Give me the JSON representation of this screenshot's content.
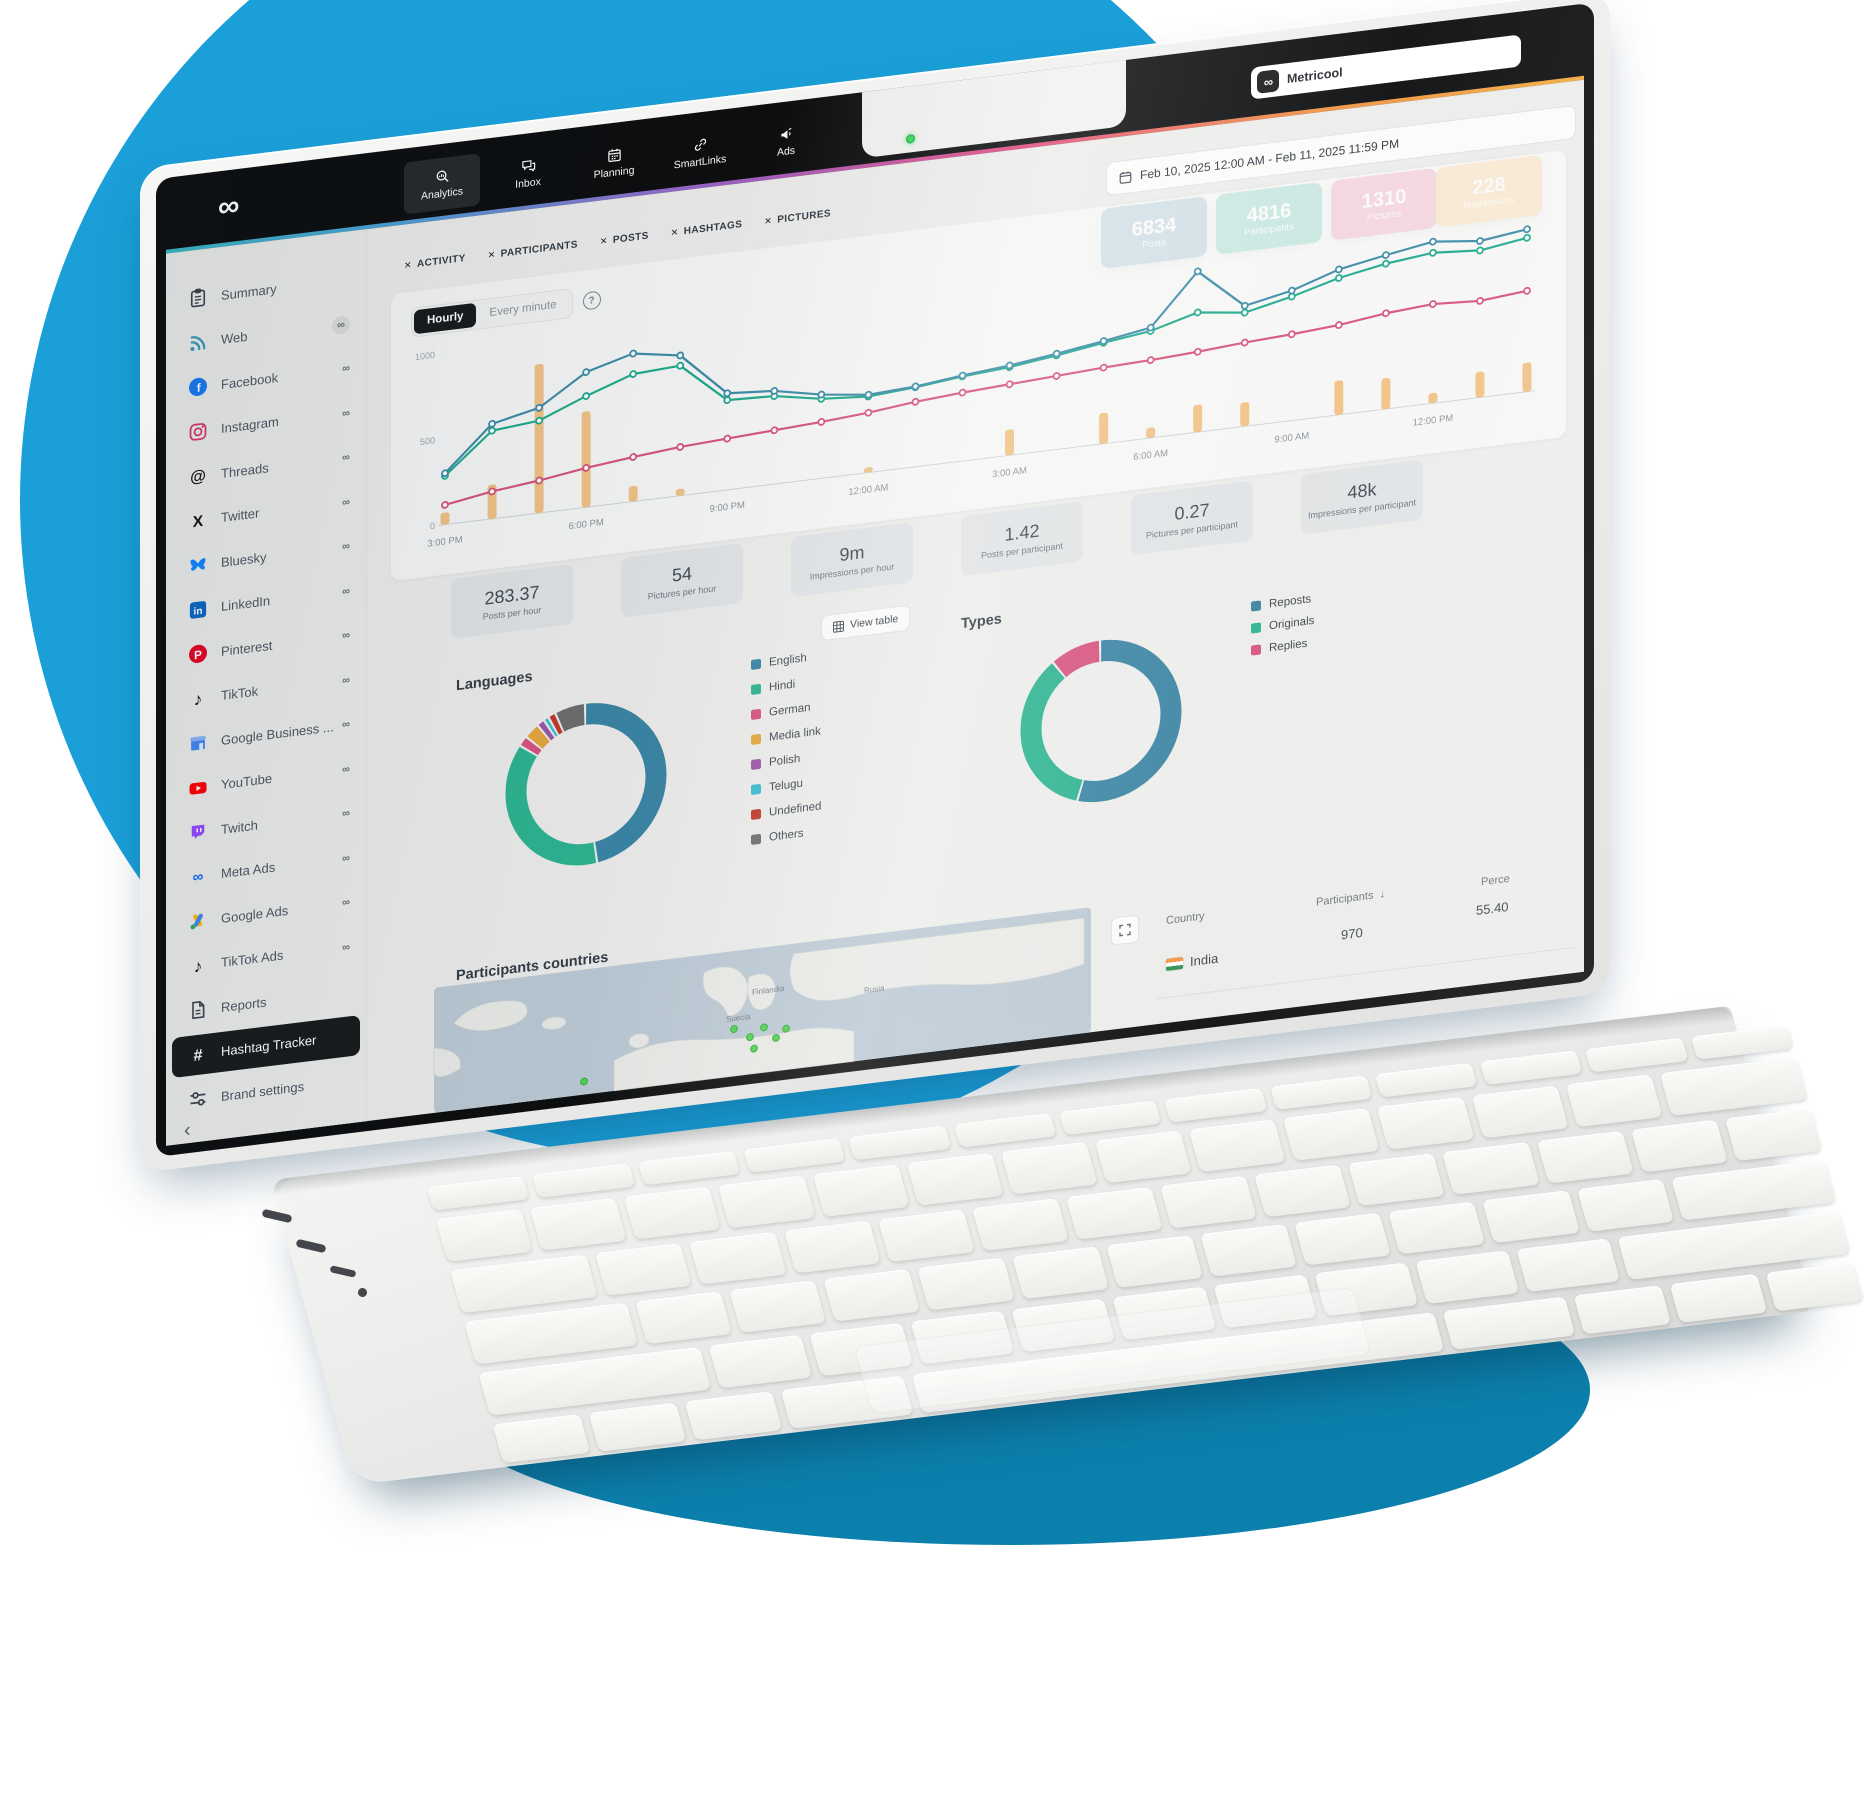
{
  "scene": {
    "background_color": "#1b9fd8",
    "background_dark_color": "#0c80ad"
  },
  "navbar": {
    "logo_glyph": "∞",
    "items": [
      {
        "label": "Analytics",
        "icon": "analytics-icon",
        "active": true
      },
      {
        "label": "Inbox",
        "icon": "inbox-icon",
        "active": false
      },
      {
        "label": "Planning",
        "icon": "planning-icon",
        "active": false
      },
      {
        "label": "SmartLinks",
        "icon": "smartlinks-icon",
        "active": false
      },
      {
        "label": "Ads",
        "icon": "ads-icon",
        "active": false
      }
    ],
    "account_badge": {
      "label": "Metricool",
      "glyph": "∞"
    }
  },
  "sidebar": {
    "items": [
      {
        "label": "Summary",
        "icon": "summary-icon",
        "badge": ""
      },
      {
        "label": "Web",
        "icon": "web-icon",
        "badge": "∞",
        "badge_circle": true
      },
      {
        "label": "Facebook",
        "icon": "facebook-icon",
        "badge": "∞"
      },
      {
        "label": "Instagram",
        "icon": "instagram-icon",
        "badge": "∞"
      },
      {
        "label": "Threads",
        "icon": "threads-icon",
        "badge": "∞"
      },
      {
        "label": "Twitter",
        "icon": "twitter-icon",
        "badge": "∞"
      },
      {
        "label": "Bluesky",
        "icon": "bluesky-icon",
        "badge": "∞"
      },
      {
        "label": "LinkedIn",
        "icon": "linkedin-icon",
        "badge": "∞"
      },
      {
        "label": "Pinterest",
        "icon": "pinterest-icon",
        "badge": "∞"
      },
      {
        "label": "TikTok",
        "icon": "tiktok-icon",
        "badge": "∞"
      },
      {
        "label": "Google Business ...",
        "icon": "google-business-icon",
        "badge": "∞"
      },
      {
        "label": "YouTube",
        "icon": "youtube-icon",
        "badge": "∞"
      },
      {
        "label": "Twitch",
        "icon": "twitch-icon",
        "badge": "∞"
      },
      {
        "label": "Meta Ads",
        "icon": "meta-ads-icon",
        "badge": "∞"
      },
      {
        "label": "Google Ads",
        "icon": "google-ads-icon",
        "badge": "∞"
      },
      {
        "label": "TikTok Ads",
        "icon": "tiktok-ads-icon",
        "badge": "∞"
      },
      {
        "label": "Reports",
        "icon": "reports-icon",
        "badge": ""
      },
      {
        "label": "Hashtag Tracker",
        "icon": "hashtag-icon",
        "badge": "",
        "active": true
      },
      {
        "label": "Brand settings",
        "icon": "settings-icon",
        "badge": ""
      }
    ],
    "collapse_glyph": "‹"
  },
  "filters": {
    "chips": [
      {
        "label": "ACTIVITY"
      },
      {
        "label": "PARTICIPANTS"
      },
      {
        "label": "POSTS"
      },
      {
        "label": "HASHTAGS"
      },
      {
        "label": "PICTURES"
      }
    ],
    "remove_glyph": "✕"
  },
  "toolbar": {
    "date_range": "Feb 10, 2025 12:00 AM  -  Feb 11, 2025 11:59 PM"
  },
  "kpis": [
    {
      "value": "6834",
      "label": "Posts",
      "color": "#3b7fa0"
    },
    {
      "value": "4816",
      "label": "Participants",
      "color": "#13a086"
    },
    {
      "value": "1310",
      "label": "Pictures",
      "color": "#de4a7d"
    },
    {
      "value": "228",
      "label": "Impressions",
      "color": "#efa63e"
    }
  ],
  "activity": {
    "toggle": [
      {
        "label": "Hourly",
        "active": true
      },
      {
        "label": "Every minute",
        "active": false
      }
    ],
    "help_glyph": "?",
    "chart_data": {
      "type": "line",
      "tick_labels": [
        "3:00 PM",
        "6:00 PM",
        "9:00 PM",
        "12:00 AM",
        "3:00 AM",
        "6:00 AM",
        "9:00 AM",
        "12:00 PM"
      ],
      "tick_every": 3,
      "ylim": [
        0,
        1000
      ],
      "yticks": [
        0,
        500,
        1000
      ],
      "series": [
        {
          "name": "teal-line",
          "color": "#3c8ba8",
          "values": [
            300,
            555,
            615,
            790,
            865,
            820,
            565,
            545,
            490,
            455,
            470,
            500,
            525,
            560,
            600,
            645,
            940,
            705,
            760,
            850,
            900,
            945,
            915,
            950
          ]
        },
        {
          "name": "green-line",
          "color": "#1fa98c",
          "values": [
            285,
            515,
            540,
            650,
            745,
            760,
            525,
            515,
            465,
            445,
            465,
            495,
            515,
            550,
            590,
            625,
            700,
            665,
            725,
            800,
            850,
            880,
            860,
            900
          ]
        },
        {
          "name": "pink-line",
          "color": "#d5537c",
          "values": [
            115,
            160,
            190,
            230,
            260,
            285,
            300,
            315,
            330,
            350,
            380,
            400,
            415,
            430,
            445,
            455,
            470,
            490,
            505,
            525,
            560,
            580,
            565,
            590
          ]
        }
      ],
      "bars": {
        "name": "orange-bars",
        "color": "#f0bd79",
        "values": [
          70,
          200,
          870,
          560,
          90,
          40,
          0,
          0,
          0,
          30,
          0,
          0,
          150,
          0,
          180,
          60,
          160,
          140,
          0,
          200,
          180,
          60,
          150,
          170
        ]
      }
    }
  },
  "metrics": [
    {
      "value": "283.37",
      "label": "Posts per hour"
    },
    {
      "value": "54",
      "label": "Pictures per hour"
    },
    {
      "value": "9m",
      "label": "Impressions per hour"
    },
    {
      "value": "1.42",
      "label": "Posts per participant"
    },
    {
      "value": "0.27",
      "label": "Pictures per participant"
    },
    {
      "value": "48k",
      "label": "Impressions per participant"
    }
  ],
  "view_table": {
    "label": "View table"
  },
  "languages": {
    "title": "Languages",
    "chart_data": {
      "type": "pie",
      "labels": [
        "English",
        "Hindi",
        "German",
        "Media link",
        "Polish",
        "Telugu",
        "Undefined",
        "Others"
      ],
      "values": [
        48,
        37,
        2,
        3,
        1.5,
        1,
        1.5,
        6
      ],
      "colors": [
        "#3a84a3",
        "#2cb390",
        "#d6527f",
        "#e5a63d",
        "#9c56a5",
        "#3bbcd1",
        "#c0392b",
        "#6d6d6d"
      ],
      "unit": "percent-share-of-donut"
    }
  },
  "types": {
    "title": "Types",
    "chart_data": {
      "type": "pie",
      "labels": [
        "Reposts",
        "Originals",
        "Replies"
      ],
      "values": [
        55,
        35,
        10
      ],
      "colors": [
        "#3a84a3",
        "#2cb390",
        "#d6527f"
      ],
      "unit": "percent-share-of-donut"
    }
  },
  "countries": {
    "title": "Participants countries",
    "map_labels": [
      "Finlandia",
      "Suecia",
      "Rusia"
    ],
    "table": {
      "columns": [
        "Country",
        "Participants",
        "Perce"
      ],
      "sort_glyph": "↓",
      "rows": [
        {
          "country": "India",
          "flag": "india-flag-icon",
          "participants": "970",
          "percentage": "55.40"
        }
      ]
    }
  }
}
